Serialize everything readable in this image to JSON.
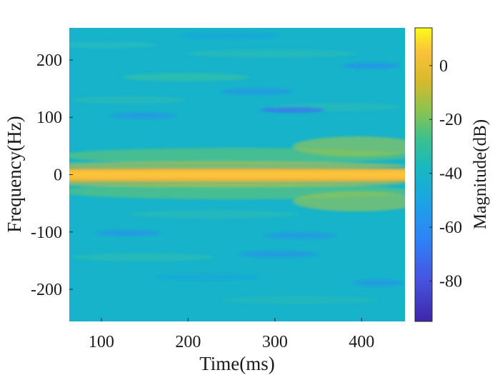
{
  "chart_data": {
    "type": "heatmap",
    "title": "",
    "xlabel": "Time(ms)",
    "ylabel": "Frequency(Hz)",
    "xlim": [
      63,
      450
    ],
    "ylim": [
      -256,
      256
    ],
    "xticks": [
      100,
      200,
      300,
      400
    ],
    "yticks": [
      -200,
      -100,
      0,
      100,
      200
    ],
    "colorbar": {
      "label": "Magnitude(dB)",
      "range": [
        -95,
        14
      ],
      "ticks": [
        0,
        -20,
        -40,
        -60,
        -80
      ],
      "colormap": "parula"
    },
    "features": [
      {
        "label": "DC band",
        "frequency_hz": 0,
        "magnitude_db": 0
      },
      {
        "label": "upper sideband",
        "frequency_hz": 45,
        "magnitude_db": -22
      },
      {
        "label": "lower sideband",
        "frequency_hz": -45,
        "magnitude_db": -22
      },
      {
        "label": "background",
        "magnitude_db": -40
      }
    ],
    "grid": false
  }
}
